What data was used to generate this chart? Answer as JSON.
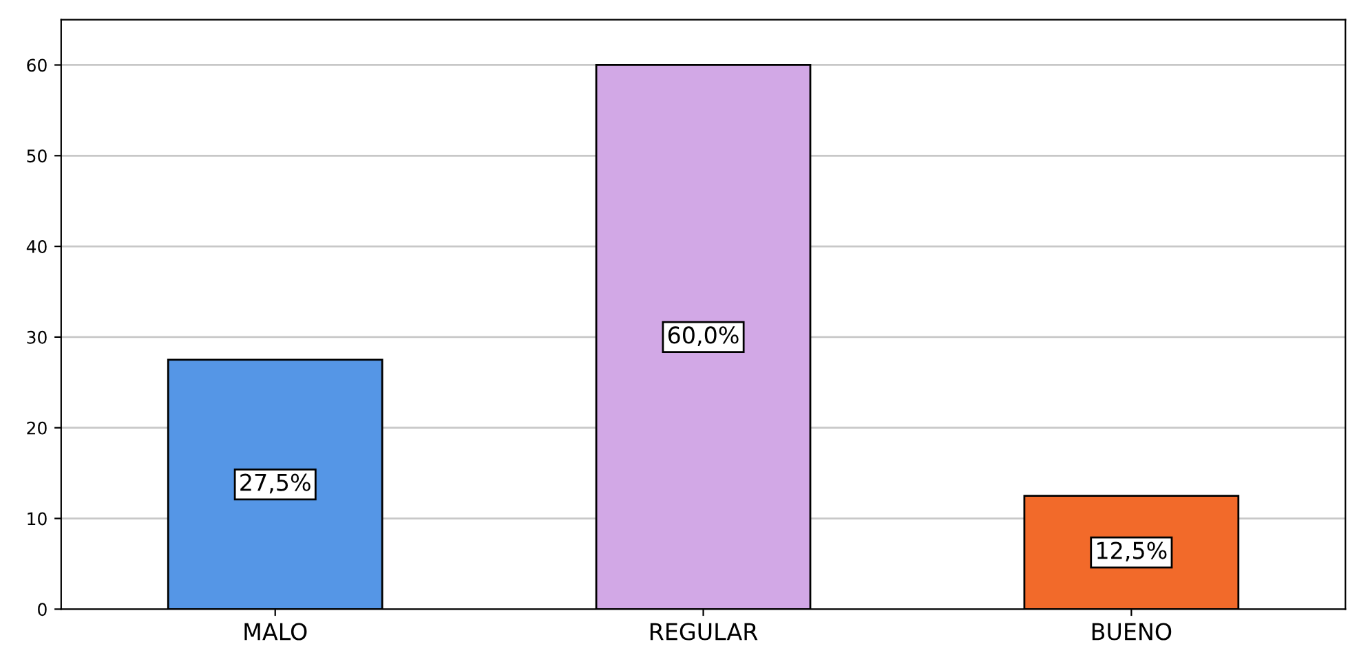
{
  "chart_data": {
    "type": "bar",
    "categories": [
      "MALO",
      "REGULAR",
      "BUENO"
    ],
    "values": [
      27.5,
      60.0,
      12.5
    ],
    "colors": [
      "#5596e6",
      "#d2a8e6",
      "#f26a2a"
    ],
    "value_labels": [
      "27,5%",
      "60,0%",
      "12,5%"
    ],
    "ylim": [
      0,
      65
    ],
    "yticks": [
      0,
      10,
      20,
      30,
      40,
      50,
      60
    ],
    "grid": "y"
  }
}
